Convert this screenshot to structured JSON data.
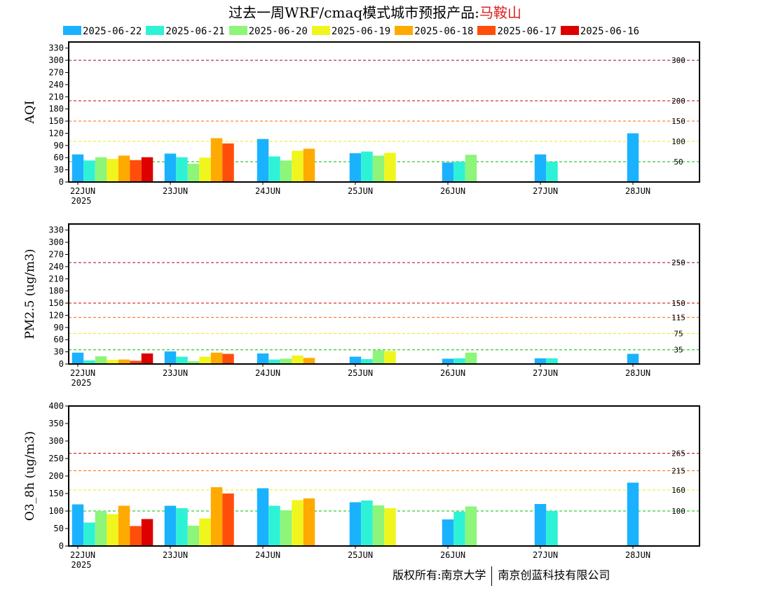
{
  "title": {
    "prefix": "过去一周WRF/cmaq模式城市预报产品:",
    "city": "马鞍山"
  },
  "legend": [
    {
      "label": "2025-06-22",
      "color": "#1ab2ff"
    },
    {
      "label": "2025-06-21",
      "color": "#2ef2d6"
    },
    {
      "label": "2025-06-20",
      "color": "#8cf57a"
    },
    {
      "label": "2025-06-19",
      "color": "#f0f51e"
    },
    {
      "label": "2025-06-18",
      "color": "#ffaa00"
    },
    {
      "label": "2025-06-17",
      "color": "#ff4e0a"
    },
    {
      "label": "2025-06-16",
      "color": "#dd0000"
    }
  ],
  "copyright": {
    "left": "版权所有:南京大学",
    "right": "南京创蓝科技有限公司"
  },
  "chart_data": [
    {
      "type": "bar",
      "ylabel": "AQI",
      "ylim": [
        0,
        345
      ],
      "yticks": [
        0,
        30,
        60,
        90,
        120,
        150,
        180,
        210,
        240,
        270,
        300,
        330
      ],
      "categories": [
        "22JUN",
        "23JUN",
        "24JUN",
        "25JUN",
        "26JUN",
        "27JUN",
        "28JUN"
      ],
      "year_label": "2025",
      "thresholds": [
        {
          "value": 300,
          "label": "300",
          "color": "#a0003c"
        },
        {
          "value": 200,
          "label": "200",
          "color": "#cc0000"
        },
        {
          "value": 150,
          "label": "150",
          "color": "#ff6600"
        },
        {
          "value": 100,
          "label": "100",
          "color": "#eeee00"
        },
        {
          "value": 50,
          "label": "50",
          "color": "#00bb00"
        }
      ],
      "series": [
        {
          "name": "2025-06-22",
          "values": [
            68,
            70,
            106,
            71,
            48,
            68,
            120
          ]
        },
        {
          "name": "2025-06-21",
          "values": [
            53,
            61,
            63,
            75,
            50,
            50,
            null
          ]
        },
        {
          "name": "2025-06-20",
          "values": [
            61,
            45,
            53,
            65,
            67,
            null,
            null
          ]
        },
        {
          "name": "2025-06-19",
          "values": [
            57,
            60,
            77,
            72,
            null,
            null,
            null
          ]
        },
        {
          "name": "2025-06-18",
          "values": [
            65,
            108,
            82,
            null,
            null,
            null,
            null
          ]
        },
        {
          "name": "2025-06-17",
          "values": [
            54,
            95,
            null,
            null,
            null,
            null,
            null
          ]
        },
        {
          "name": "2025-06-16",
          "values": [
            61,
            null,
            null,
            null,
            null,
            null,
            null
          ]
        }
      ]
    },
    {
      "type": "bar",
      "ylabel": "PM2.5 (ug/m3)",
      "ylim": [
        0,
        345
      ],
      "yticks": [
        0,
        30,
        60,
        90,
        120,
        150,
        180,
        210,
        240,
        270,
        300,
        330
      ],
      "categories": [
        "22JUN",
        "23JUN",
        "24JUN",
        "25JUN",
        "26JUN",
        "27JUN",
        "28JUN"
      ],
      "year_label": "2025",
      "thresholds": [
        {
          "value": 250,
          "label": "250",
          "color": "#a0003c"
        },
        {
          "value": 150,
          "label": "150",
          "color": "#cc0000"
        },
        {
          "value": 115,
          "label": "115",
          "color": "#ff6600"
        },
        {
          "value": 75,
          "label": "75",
          "color": "#eeee00"
        },
        {
          "value": 35,
          "label": "35",
          "color": "#00bb00"
        }
      ],
      "series": [
        {
          "name": "2025-06-22",
          "values": [
            28,
            31,
            26,
            18,
            13,
            14,
            25
          ]
        },
        {
          "name": "2025-06-21",
          "values": [
            9,
            18,
            11,
            12,
            14,
            14,
            null
          ]
        },
        {
          "name": "2025-06-20",
          "values": [
            19,
            7,
            13,
            34,
            28,
            null,
            null
          ]
        },
        {
          "name": "2025-06-19",
          "values": [
            10,
            18,
            21,
            32,
            null,
            null,
            null
          ]
        },
        {
          "name": "2025-06-18",
          "values": [
            11,
            28,
            15,
            null,
            null,
            null,
            null
          ]
        },
        {
          "name": "2025-06-17",
          "values": [
            8,
            25,
            null,
            null,
            null,
            null,
            null
          ]
        },
        {
          "name": "2025-06-16",
          "values": [
            26,
            null,
            null,
            null,
            null,
            null,
            null
          ]
        }
      ]
    },
    {
      "type": "bar",
      "ylabel": "O3_8h (ug/m3)",
      "ylim": [
        0,
        400
      ],
      "yticks": [
        0,
        50,
        100,
        150,
        200,
        250,
        300,
        350,
        400
      ],
      "categories": [
        "22JUN",
        "23JUN",
        "24JUN",
        "25JUN",
        "26JUN",
        "27JUN",
        "28JUN"
      ],
      "year_label": "2025",
      "thresholds": [
        {
          "value": 265,
          "label": "265",
          "color": "#cc0000"
        },
        {
          "value": 215,
          "label": "215",
          "color": "#ff6600"
        },
        {
          "value": 160,
          "label": "160",
          "color": "#eeee00"
        },
        {
          "value": 100,
          "label": "100",
          "color": "#00bb00"
        }
      ],
      "series": [
        {
          "name": "2025-06-22",
          "values": [
            119,
            115,
            165,
            125,
            76,
            120,
            181
          ]
        },
        {
          "name": "2025-06-21",
          "values": [
            67,
            108,
            115,
            130,
            98,
            100,
            null
          ]
        },
        {
          "name": "2025-06-20",
          "values": [
            100,
            58,
            102,
            116,
            113,
            null,
            null
          ]
        },
        {
          "name": "2025-06-19",
          "values": [
            91,
            79,
            131,
            108,
            null,
            null,
            null
          ]
        },
        {
          "name": "2025-06-18",
          "values": [
            115,
            168,
            136,
            null,
            null,
            null,
            null
          ]
        },
        {
          "name": "2025-06-17",
          "values": [
            57,
            150,
            null,
            null,
            null,
            null,
            null
          ]
        },
        {
          "name": "2025-06-16",
          "values": [
            77,
            null,
            null,
            null,
            null,
            null,
            null
          ]
        }
      ]
    }
  ]
}
